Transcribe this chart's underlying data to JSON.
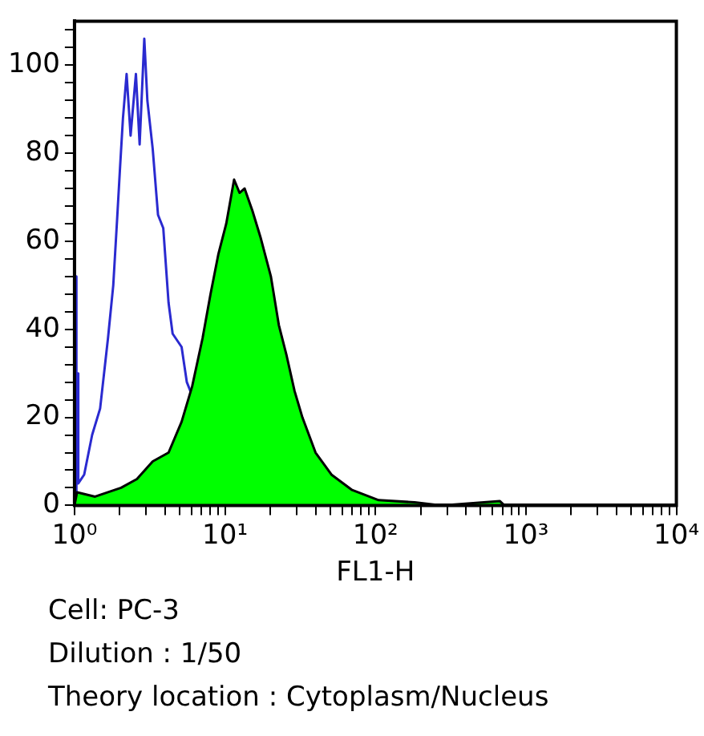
{
  "chart_data": {
    "type": "area",
    "xlabel": "FL1-H",
    "log": "x",
    "grid": false,
    "legend": false,
    "xlim": [
      1,
      10000
    ],
    "ylim": [
      0,
      110
    ],
    "xticks": [
      {
        "value": 1,
        "label": "10⁰"
      },
      {
        "value": 2,
        "label": null
      },
      {
        "value": 3,
        "label": null
      },
      {
        "value": 4,
        "label": null
      },
      {
        "value": 5,
        "label": null
      },
      {
        "value": 6,
        "label": null
      },
      {
        "value": 7,
        "label": null
      },
      {
        "value": 8,
        "label": null
      },
      {
        "value": 9,
        "label": null
      },
      {
        "value": 10,
        "label": "10¹"
      },
      {
        "value": 20,
        "label": null
      },
      {
        "value": 30,
        "label": null
      },
      {
        "value": 40,
        "label": null
      },
      {
        "value": 50,
        "label": null
      },
      {
        "value": 60,
        "label": null
      },
      {
        "value": 70,
        "label": null
      },
      {
        "value": 80,
        "label": null
      },
      {
        "value": 90,
        "label": null
      },
      {
        "value": 100,
        "label": "10²"
      },
      {
        "value": 200,
        "label": null
      },
      {
        "value": 300,
        "label": null
      },
      {
        "value": 400,
        "label": null
      },
      {
        "value": 500,
        "label": null
      },
      {
        "value": 600,
        "label": null
      },
      {
        "value": 700,
        "label": null
      },
      {
        "value": 800,
        "label": null
      },
      {
        "value": 900,
        "label": null
      },
      {
        "value": 1000,
        "label": "10³"
      },
      {
        "value": 2000,
        "label": null
      },
      {
        "value": 3000,
        "label": null
      },
      {
        "value": 4000,
        "label": null
      },
      {
        "value": 5000,
        "label": null
      },
      {
        "value": 6000,
        "label": null
      },
      {
        "value": 7000,
        "label": null
      },
      {
        "value": 8000,
        "label": null
      },
      {
        "value": 9000,
        "label": null
      },
      {
        "value": 10000,
        "label": "10⁴"
      }
    ],
    "yticks": [
      0,
      {
        "value": 4,
        "label": null
      },
      {
        "value": 8,
        "label": null
      },
      {
        "value": 12,
        "label": null
      },
      {
        "value": 16,
        "label": null
      },
      20,
      {
        "value": 24,
        "label": null
      },
      {
        "value": 28,
        "label": null
      },
      {
        "value": 32,
        "label": null
      },
      {
        "value": 36,
        "label": null
      },
      40,
      {
        "value": 44,
        "label": null
      },
      {
        "value": 48,
        "label": null
      },
      {
        "value": 52,
        "label": null
      },
      {
        "value": 56,
        "label": null
      },
      60,
      {
        "value": 64,
        "label": null
      },
      {
        "value": 68,
        "label": null
      },
      {
        "value": 72,
        "label": null
      },
      {
        "value": 76,
        "label": null
      },
      80,
      {
        "value": 84,
        "label": null
      },
      {
        "value": 88,
        "label": null
      },
      {
        "value": 92,
        "label": null
      },
      {
        "value": 96,
        "label": null
      },
      100,
      {
        "value": 104,
        "label": null
      },
      {
        "value": 108,
        "label": null
      }
    ],
    "series": [
      {
        "type": "area",
        "color": "#00ff00",
        "x": [
          1,
          1.04,
          1.37,
          2.04,
          2.6,
          3.31,
          4.22,
          5.15,
          6.05,
          7.1,
          8.02,
          9.03,
          10.2,
          11.5,
          12.5,
          13.5,
          15.2,
          17.2,
          20.2,
          22.8,
          25.7,
          29,
          32.7,
          40,
          51,
          70,
          105,
          182,
          275,
          670,
          720,
          10000
        ],
        "values": [
          0,
          3,
          2,
          4,
          6,
          10,
          12,
          19,
          27,
          38,
          48,
          57,
          64,
          74,
          71,
          72,
          67,
          61,
          52,
          41,
          34,
          26,
          20,
          12,
          7,
          3.5,
          1.2,
          0.7,
          0,
          1,
          0,
          0
        ]
      },
      {
        "type": "line",
        "color": "#2a2ad0",
        "x": [
          1.02,
          1.025,
          1.035,
          1.045,
          1.06,
          1.16,
          1.31,
          1.48,
          1.67,
          1.81,
          1.92,
          2.01,
          2.1,
          2.22,
          2.36,
          2.56,
          2.71,
          2.91,
          3.05,
          3.31,
          3.59,
          3.89,
          4.22,
          4.49,
          5.15,
          5.58,
          6.05
        ],
        "values": [
          0,
          52,
          5,
          30,
          5,
          7,
          16,
          22,
          38,
          50,
          65,
          77,
          88,
          98,
          84,
          98,
          82,
          106,
          92,
          81,
          66,
          63,
          46,
          39,
          36,
          28,
          25
        ]
      }
    ],
    "annotations": [
      "Cell: PC-3",
      "Dilution : 1/50",
      "Theory location : Cytoplasm/Nucleus"
    ]
  }
}
